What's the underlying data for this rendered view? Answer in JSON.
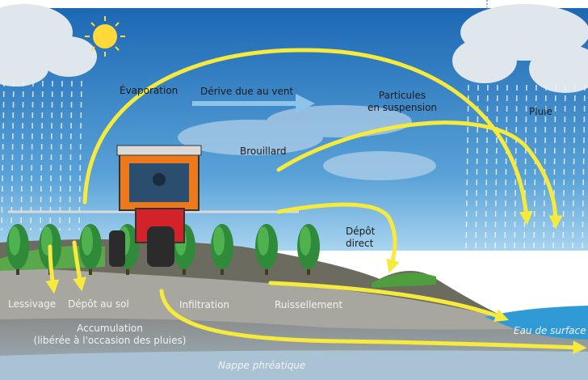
{
  "labels": {
    "evaporation": "Évaporation",
    "wind_drift": "Dérive due au vent",
    "suspended_particles": [
      "Particules",
      "en suspension"
    ],
    "rain": "Pluie",
    "fog": "Brouillard",
    "direct_deposit": [
      "Dépôt",
      "direct"
    ],
    "leaching": "Lessivage",
    "soil_deposit": "Dépôt au sol",
    "infiltration": "Infiltration",
    "runoff": "Ruissellement",
    "accumulation": [
      "Accumulation",
      "(libérée à l'occasion des pluies)"
    ],
    "surface_water": "Eau de surface",
    "groundwater": "Nappe phréatique"
  }
}
